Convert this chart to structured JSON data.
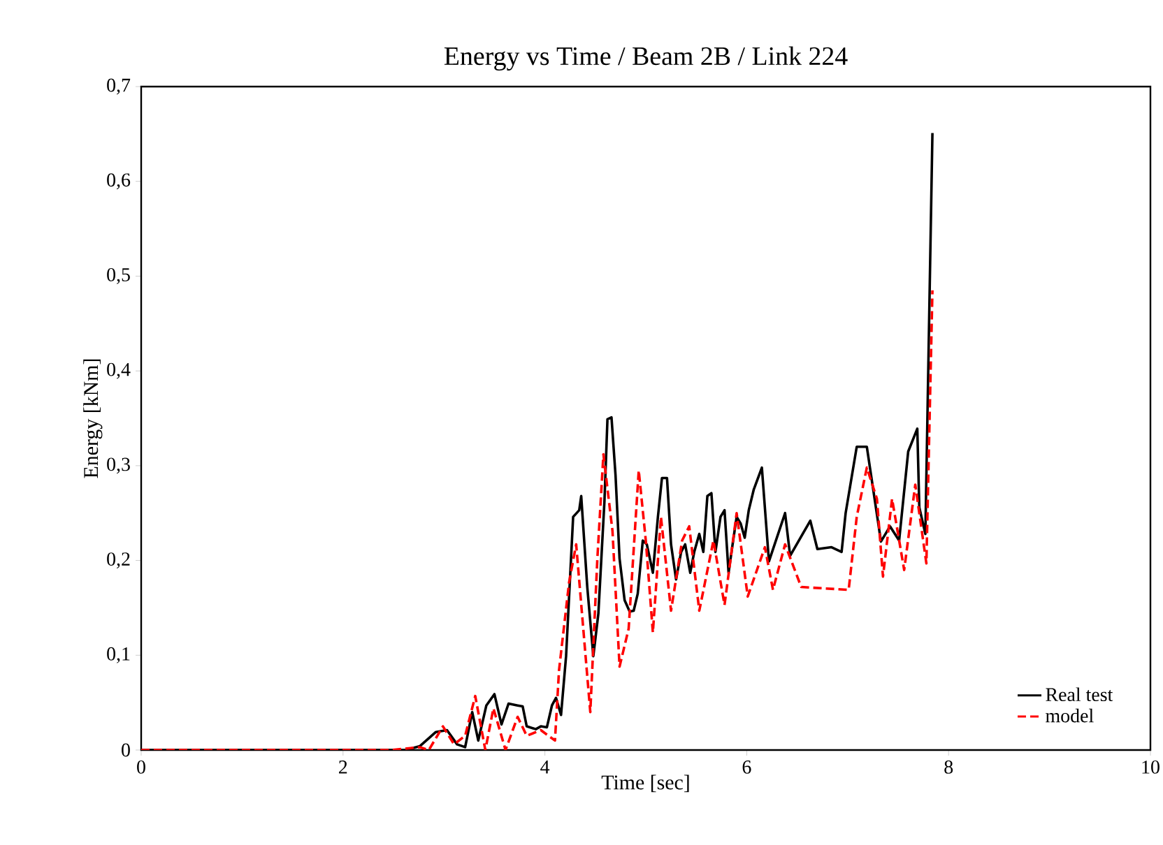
{
  "chart_data": {
    "type": "line",
    "title": "Energy vs Time / Beam 2B / Link 224",
    "xlabel": "Time [sec]",
    "ylabel": "Energy [kNm]",
    "xlim": [
      0,
      10
    ],
    "xticks": [
      0,
      2,
      4,
      6,
      8,
      10
    ],
    "ylim": [
      0,
      0.7
    ],
    "yticks": [
      0,
      {
        "value": 0.1,
        "label": "0,1"
      },
      {
        "value": 0.2,
        "label": "0,2"
      },
      {
        "value": 0.3,
        "label": "0,3"
      },
      {
        "value": 0.4,
        "label": "0,4"
      },
      {
        "value": 0.5,
        "label": "0,5"
      },
      {
        "value": 0.6,
        "label": "0,6"
      },
      {
        "value": 0.7,
        "label": "0,7"
      }
    ],
    "grid": false,
    "legend": "bottom right",
    "marker": "none",
    "series": [
      {
        "name": "Real test",
        "color": "#000000",
        "line_style": "solid",
        "x": [
          0,
          2.62,
          2.76,
          2.92,
          3.03,
          3.13,
          3.21,
          3.28,
          3.34,
          3.42,
          3.5,
          3.57,
          3.64,
          3.73,
          3.78,
          3.82,
          3.91,
          3.96,
          4.02,
          4.07,
          4.11,
          4.16,
          4.21,
          4.28,
          4.34,
          4.36,
          4.42,
          4.48,
          4.53,
          4.59,
          4.62,
          4.66,
          4.7,
          4.74,
          4.79,
          4.84,
          4.88,
          4.92,
          4.97,
          5.01,
          5.07,
          5.12,
          5.16,
          5.21,
          5.25,
          5.3,
          5.35,
          5.39,
          5.44,
          5.48,
          5.53,
          5.57,
          5.61,
          5.65,
          5.69,
          5.74,
          5.78,
          5.82,
          5.86,
          5.9,
          5.94,
          5.98,
          6.02,
          6.07,
          6.15,
          6.22,
          6.38,
          6.43,
          6.63,
          6.7,
          6.84,
          6.94,
          6.98,
          7.09,
          7.19,
          7.33,
          7.42,
          7.51,
          7.6,
          7.69,
          7.71,
          7.77,
          7.84
        ],
        "values": [
          0,
          0,
          0.004,
          0.019,
          0.021,
          0.006,
          0.003,
          0.04,
          0.01,
          0.047,
          0.059,
          0.027,
          0.049,
          0.047,
          0.046,
          0.025,
          0.022,
          0.025,
          0.024,
          0.047,
          0.055,
          0.037,
          0.099,
          0.246,
          0.253,
          0.268,
          0.172,
          0.099,
          0.144,
          0.262,
          0.349,
          0.351,
          0.29,
          0.202,
          0.158,
          0.146,
          0.147,
          0.165,
          0.221,
          0.217,
          0.187,
          0.246,
          0.287,
          0.287,
          0.217,
          0.18,
          0.209,
          0.217,
          0.187,
          0.209,
          0.228,
          0.209,
          0.268,
          0.271,
          0.209,
          0.246,
          0.253,
          0.187,
          0.217,
          0.246,
          0.239,
          0.224,
          0.253,
          0.275,
          0.298,
          0.199,
          0.25,
          0.205,
          0.242,
          0.212,
          0.214,
          0.209,
          0.25,
          0.32,
          0.32,
          0.22,
          0.236,
          0.221,
          0.315,
          0.339,
          0.256,
          0.228,
          0.651
        ]
      },
      {
        "name": "model",
        "color": "#ff0000",
        "line_style": "dashed",
        "x": [
          0,
          2.48,
          2.76,
          2.85,
          2.99,
          3.1,
          3.21,
          3.31,
          3.41,
          3.49,
          3.61,
          3.73,
          3.82,
          3.96,
          4.1,
          4.14,
          4.24,
          4.31,
          4.45,
          4.52,
          4.58,
          4.67,
          4.74,
          4.83,
          4.93,
          5.0,
          5.07,
          5.15,
          5.25,
          5.36,
          5.43,
          5.53,
          5.67,
          5.78,
          5.9,
          6.01,
          6.18,
          6.26,
          6.38,
          6.54,
          7.01,
          7.09,
          7.19,
          7.29,
          7.35,
          7.44,
          7.56,
          7.67,
          7.78,
          7.84
        ],
        "values": [
          0,
          0,
          0.003,
          0,
          0.025,
          0.006,
          0.015,
          0.057,
          0,
          0.044,
          0,
          0.035,
          0.015,
          0.021,
          0.01,
          0.084,
          0.177,
          0.217,
          0.04,
          0.202,
          0.312,
          0.231,
          0.088,
          0.128,
          0.295,
          0.221,
          0.124,
          0.246,
          0.147,
          0.221,
          0.236,
          0.147,
          0.221,
          0.153,
          0.25,
          0.162,
          0.214,
          0.169,
          0.217,
          0.172,
          0.169,
          0.246,
          0.298,
          0.265,
          0.183,
          0.265,
          0.19,
          0.28,
          0.197,
          0.485
        ]
      }
    ]
  }
}
